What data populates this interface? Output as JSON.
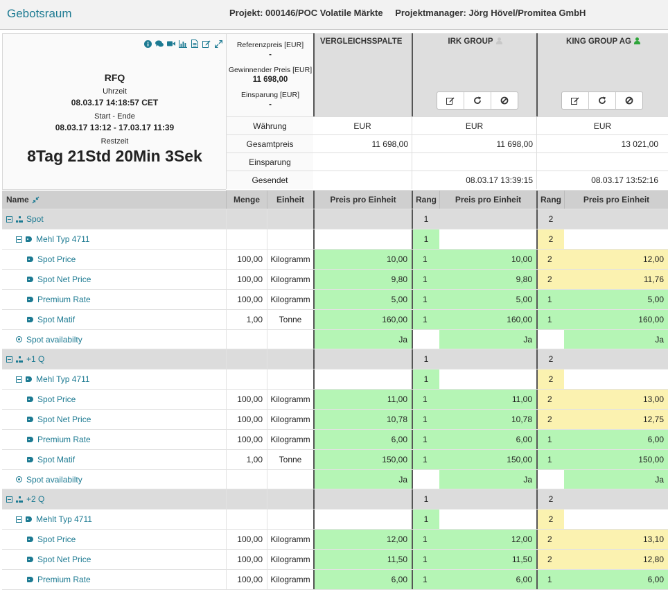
{
  "app": {
    "title": "Gebotsraum",
    "project": "Projekt: 000146/POC Volatile Märkte",
    "manager": "Projektmanager: Jörg Hövel/Promitea GmbH"
  },
  "info": {
    "icons": [
      "info-icon",
      "comments-icon",
      "video-icon",
      "chart-icon",
      "document-icon",
      "edit-icon",
      "expand-icon"
    ],
    "rfq_label": "RFQ",
    "time_label": "Uhrzeit",
    "time_value": "08.03.17 14:18:57 CET",
    "range_label": "Start - Ende",
    "range_value": "08.03.17 13:12 - 17.03.17 11:39",
    "remaining_label": "Restzeit",
    "remaining_value": "8Tag 21Std 20Min 3Sek"
  },
  "reference": {
    "ref_price_label": "Referenzpreis [EUR]",
    "ref_price_value": "-",
    "winning_label": "Gewinnender Preis [EUR]",
    "winning_value": "11 698,00",
    "savings_label": "Einsparung [EUR]",
    "savings_value": "-"
  },
  "bidders": [
    {
      "name": "VERGLEICHSSPALTE",
      "has_user": false,
      "user_color": "",
      "currency": "EUR",
      "total": "11 698,00",
      "savings": "",
      "sent": ""
    },
    {
      "name": "IRK GROUP",
      "has_user": true,
      "user_color": "#c8c8c8",
      "currency": "EUR",
      "total": "11 698,00",
      "savings": "",
      "sent": "08.03.17 13:39:15"
    },
    {
      "name": "KING GROUP AG",
      "has_user": true,
      "user_color": "#2ea53a",
      "currency": "EUR",
      "total": "13 021,00",
      "savings": "",
      "sent": "08.03.17 13:52:16"
    }
  ],
  "summary_labels": {
    "currency": "Währung",
    "total": "Gesamtpreis",
    "savings": "Einsparung",
    "sent": "Gesendet"
  },
  "columns": {
    "name": "Name",
    "qty": "Menge",
    "unit": "Einheit",
    "price": "Preis pro Einheit",
    "rank": "Rang"
  },
  "rows": [
    {
      "type": "group",
      "name": "Spot",
      "r1": "1",
      "r2": "2"
    },
    {
      "type": "item",
      "name": "Mehl Typ 4711",
      "r1": "1",
      "r2": "2"
    },
    {
      "type": "line",
      "name": "Spot Price",
      "qty": "100,00",
      "unit": "Kilogramm",
      "c": "10,00",
      "r1": "1",
      "p1": "10,00",
      "r2": "2",
      "p2": "12,00"
    },
    {
      "type": "line",
      "name": "Spot Net Price",
      "qty": "100,00",
      "unit": "Kilogramm",
      "c": "9,80",
      "r1": "1",
      "p1": "9,80",
      "r2": "2",
      "p2": "11,76"
    },
    {
      "type": "line",
      "name": "Premium Rate",
      "qty": "100,00",
      "unit": "Kilogramm",
      "c": "5,00",
      "r1": "1",
      "p1": "5,00",
      "r2": "1",
      "p2": "5,00"
    },
    {
      "type": "line",
      "name": "Spot Matif",
      "qty": "1,00",
      "unit": "Tonne",
      "c": "160,00",
      "r1": "1",
      "p1": "160,00",
      "r2": "1",
      "p2": "160,00"
    },
    {
      "type": "avail",
      "name": "Spot availabilty",
      "c": "Ja",
      "p1": "Ja",
      "p2": "Ja"
    },
    {
      "type": "group",
      "name": "+1 Q",
      "r1": "1",
      "r2": "2"
    },
    {
      "type": "item",
      "name": "Mehl Typ 4711",
      "r1": "1",
      "r2": "2"
    },
    {
      "type": "line",
      "name": "Spot Price",
      "qty": "100,00",
      "unit": "Kilogramm",
      "c": "11,00",
      "r1": "1",
      "p1": "11,00",
      "r2": "2",
      "p2": "13,00"
    },
    {
      "type": "line",
      "name": "Spot Net Price",
      "qty": "100,00",
      "unit": "Kilogramm",
      "c": "10,78",
      "r1": "1",
      "p1": "10,78",
      "r2": "2",
      "p2": "12,75"
    },
    {
      "type": "line",
      "name": "Premium Rate",
      "qty": "100,00",
      "unit": "Kilogramm",
      "c": "6,00",
      "r1": "1",
      "p1": "6,00",
      "r2": "1",
      "p2": "6,00"
    },
    {
      "type": "line",
      "name": "Spot Matif",
      "qty": "1,00",
      "unit": "Tonne",
      "c": "150,00",
      "r1": "1",
      "p1": "150,00",
      "r2": "1",
      "p2": "150,00"
    },
    {
      "type": "avail",
      "name": "Spot availabilty",
      "c": "Ja",
      "p1": "Ja",
      "p2": "Ja"
    },
    {
      "type": "group",
      "name": "+2 Q",
      "r1": "1",
      "r2": "2"
    },
    {
      "type": "item",
      "name": "Mehlt Typ 4711",
      "r1": "1",
      "r2": "2"
    },
    {
      "type": "line",
      "name": "Spot Price",
      "qty": "100,00",
      "unit": "Kilogramm",
      "c": "12,00",
      "r1": "1",
      "p1": "12,00",
      "r2": "2",
      "p2": "13,10"
    },
    {
      "type": "line",
      "name": "Spot Net Price",
      "qty": "100,00",
      "unit": "Kilogramm",
      "c": "11,50",
      "r1": "1",
      "p1": "11,50",
      "r2": "2",
      "p2": "12,80"
    },
    {
      "type": "line",
      "name": "Premium Rate",
      "qty": "100,00",
      "unit": "Kilogramm",
      "c": "6,00",
      "r1": "1",
      "p1": "6,00",
      "r2": "1",
      "p2": "6,00"
    }
  ],
  "colors": {
    "accent": "#1c7a92",
    "best": "#b5f5b5",
    "second": "#fbf2b0"
  }
}
